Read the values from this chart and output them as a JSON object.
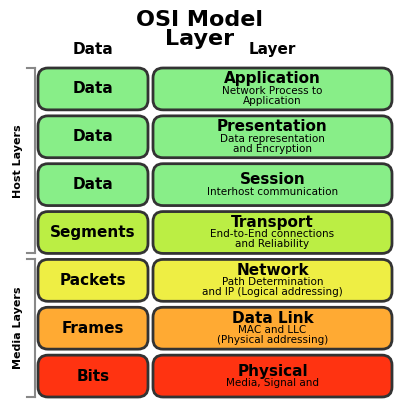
{
  "title_line1": "OSI Model",
  "title_line2": "Layer",
  "col_header_data": "Data",
  "col_header_layer": "Layer",
  "layers": [
    {
      "data_label": "Data",
      "layer_name": "Application",
      "layer_desc": "Network Process to\nApplication",
      "box_color": "#88ee88",
      "border_color": "#333333"
    },
    {
      "data_label": "Data",
      "layer_name": "Presentation",
      "layer_desc": "Data representation\nand Encryption",
      "box_color": "#88ee88",
      "border_color": "#333333"
    },
    {
      "data_label": "Data",
      "layer_name": "Session",
      "layer_desc": "Interhost communication",
      "box_color": "#88ee88",
      "border_color": "#333333"
    },
    {
      "data_label": "Segments",
      "layer_name": "Transport",
      "layer_desc": "End-to-End connections\nand Reliability",
      "box_color": "#bbee44",
      "border_color": "#333333"
    },
    {
      "data_label": "Packets",
      "layer_name": "Network",
      "layer_desc": "Path Determination\nand IP (Logical addressing)",
      "box_color": "#eeee44",
      "border_color": "#333333"
    },
    {
      "data_label": "Frames",
      "layer_name": "Data Link",
      "layer_desc": "MAC and LLC\n(Physical addressing)",
      "box_color": "#ffaa33",
      "border_color": "#333333"
    },
    {
      "data_label": "Bits",
      "layer_name": "Physical",
      "layer_desc": "Media, Signal and",
      "box_color": "#ff3311",
      "border_color": "#333333"
    }
  ],
  "host_layers_label": "Host Layers",
  "media_layers_label": "Media Layers",
  "host_layers_count": 4,
  "media_layers_count": 3,
  "bg_color": "#ffffff",
  "title_fontsize": 16,
  "header_fontsize": 11,
  "data_label_fontsize": 11,
  "layer_name_fontsize": 11,
  "layer_desc_fontsize": 7.5,
  "side_label_fontsize": 8
}
